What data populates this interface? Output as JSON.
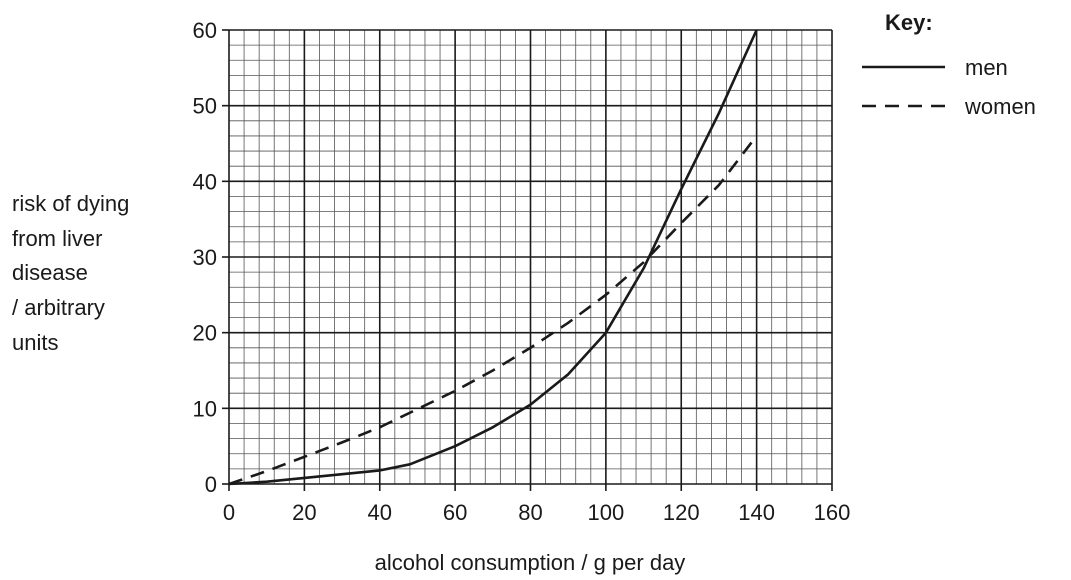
{
  "chart_data": {
    "type": "line",
    "xlabel": "alcohol consumption / g per day",
    "ylabel_lines": [
      "risk of dying",
      "from liver",
      "disease",
      "/ arbitrary",
      "units"
    ],
    "xlim": [
      0,
      160
    ],
    "ylim": [
      0,
      60
    ],
    "x_ticks": [
      0,
      20,
      40,
      60,
      80,
      100,
      120,
      140,
      160
    ],
    "y_ticks": [
      0,
      10,
      20,
      30,
      40,
      50,
      60
    ],
    "x_minor_step": 4,
    "y_minor_step": 2,
    "grid": true,
    "legend": {
      "title": "Key:",
      "position": "top-right"
    },
    "series": [
      {
        "name": "men",
        "style": "solid",
        "x": [
          0,
          10,
          20,
          30,
          40,
          48,
          60,
          70,
          80,
          90,
          100,
          110,
          120,
          130,
          140
        ],
        "y": [
          0,
          0.3,
          0.8,
          1.3,
          1.8,
          2.6,
          5,
          7.5,
          10.5,
          14.5,
          20,
          28.5,
          39,
          49,
          60
        ]
      },
      {
        "name": "women",
        "style": "dashed",
        "x": [
          0,
          10,
          20,
          30,
          40,
          50,
          60,
          70,
          80,
          90,
          100,
          110,
          120,
          130,
          140
        ],
        "y": [
          0,
          1.7,
          3.6,
          5.5,
          7.5,
          9.9,
          12.3,
          15,
          18,
          21.3,
          25,
          29.3,
          34.5,
          39.5,
          46
        ]
      }
    ]
  }
}
